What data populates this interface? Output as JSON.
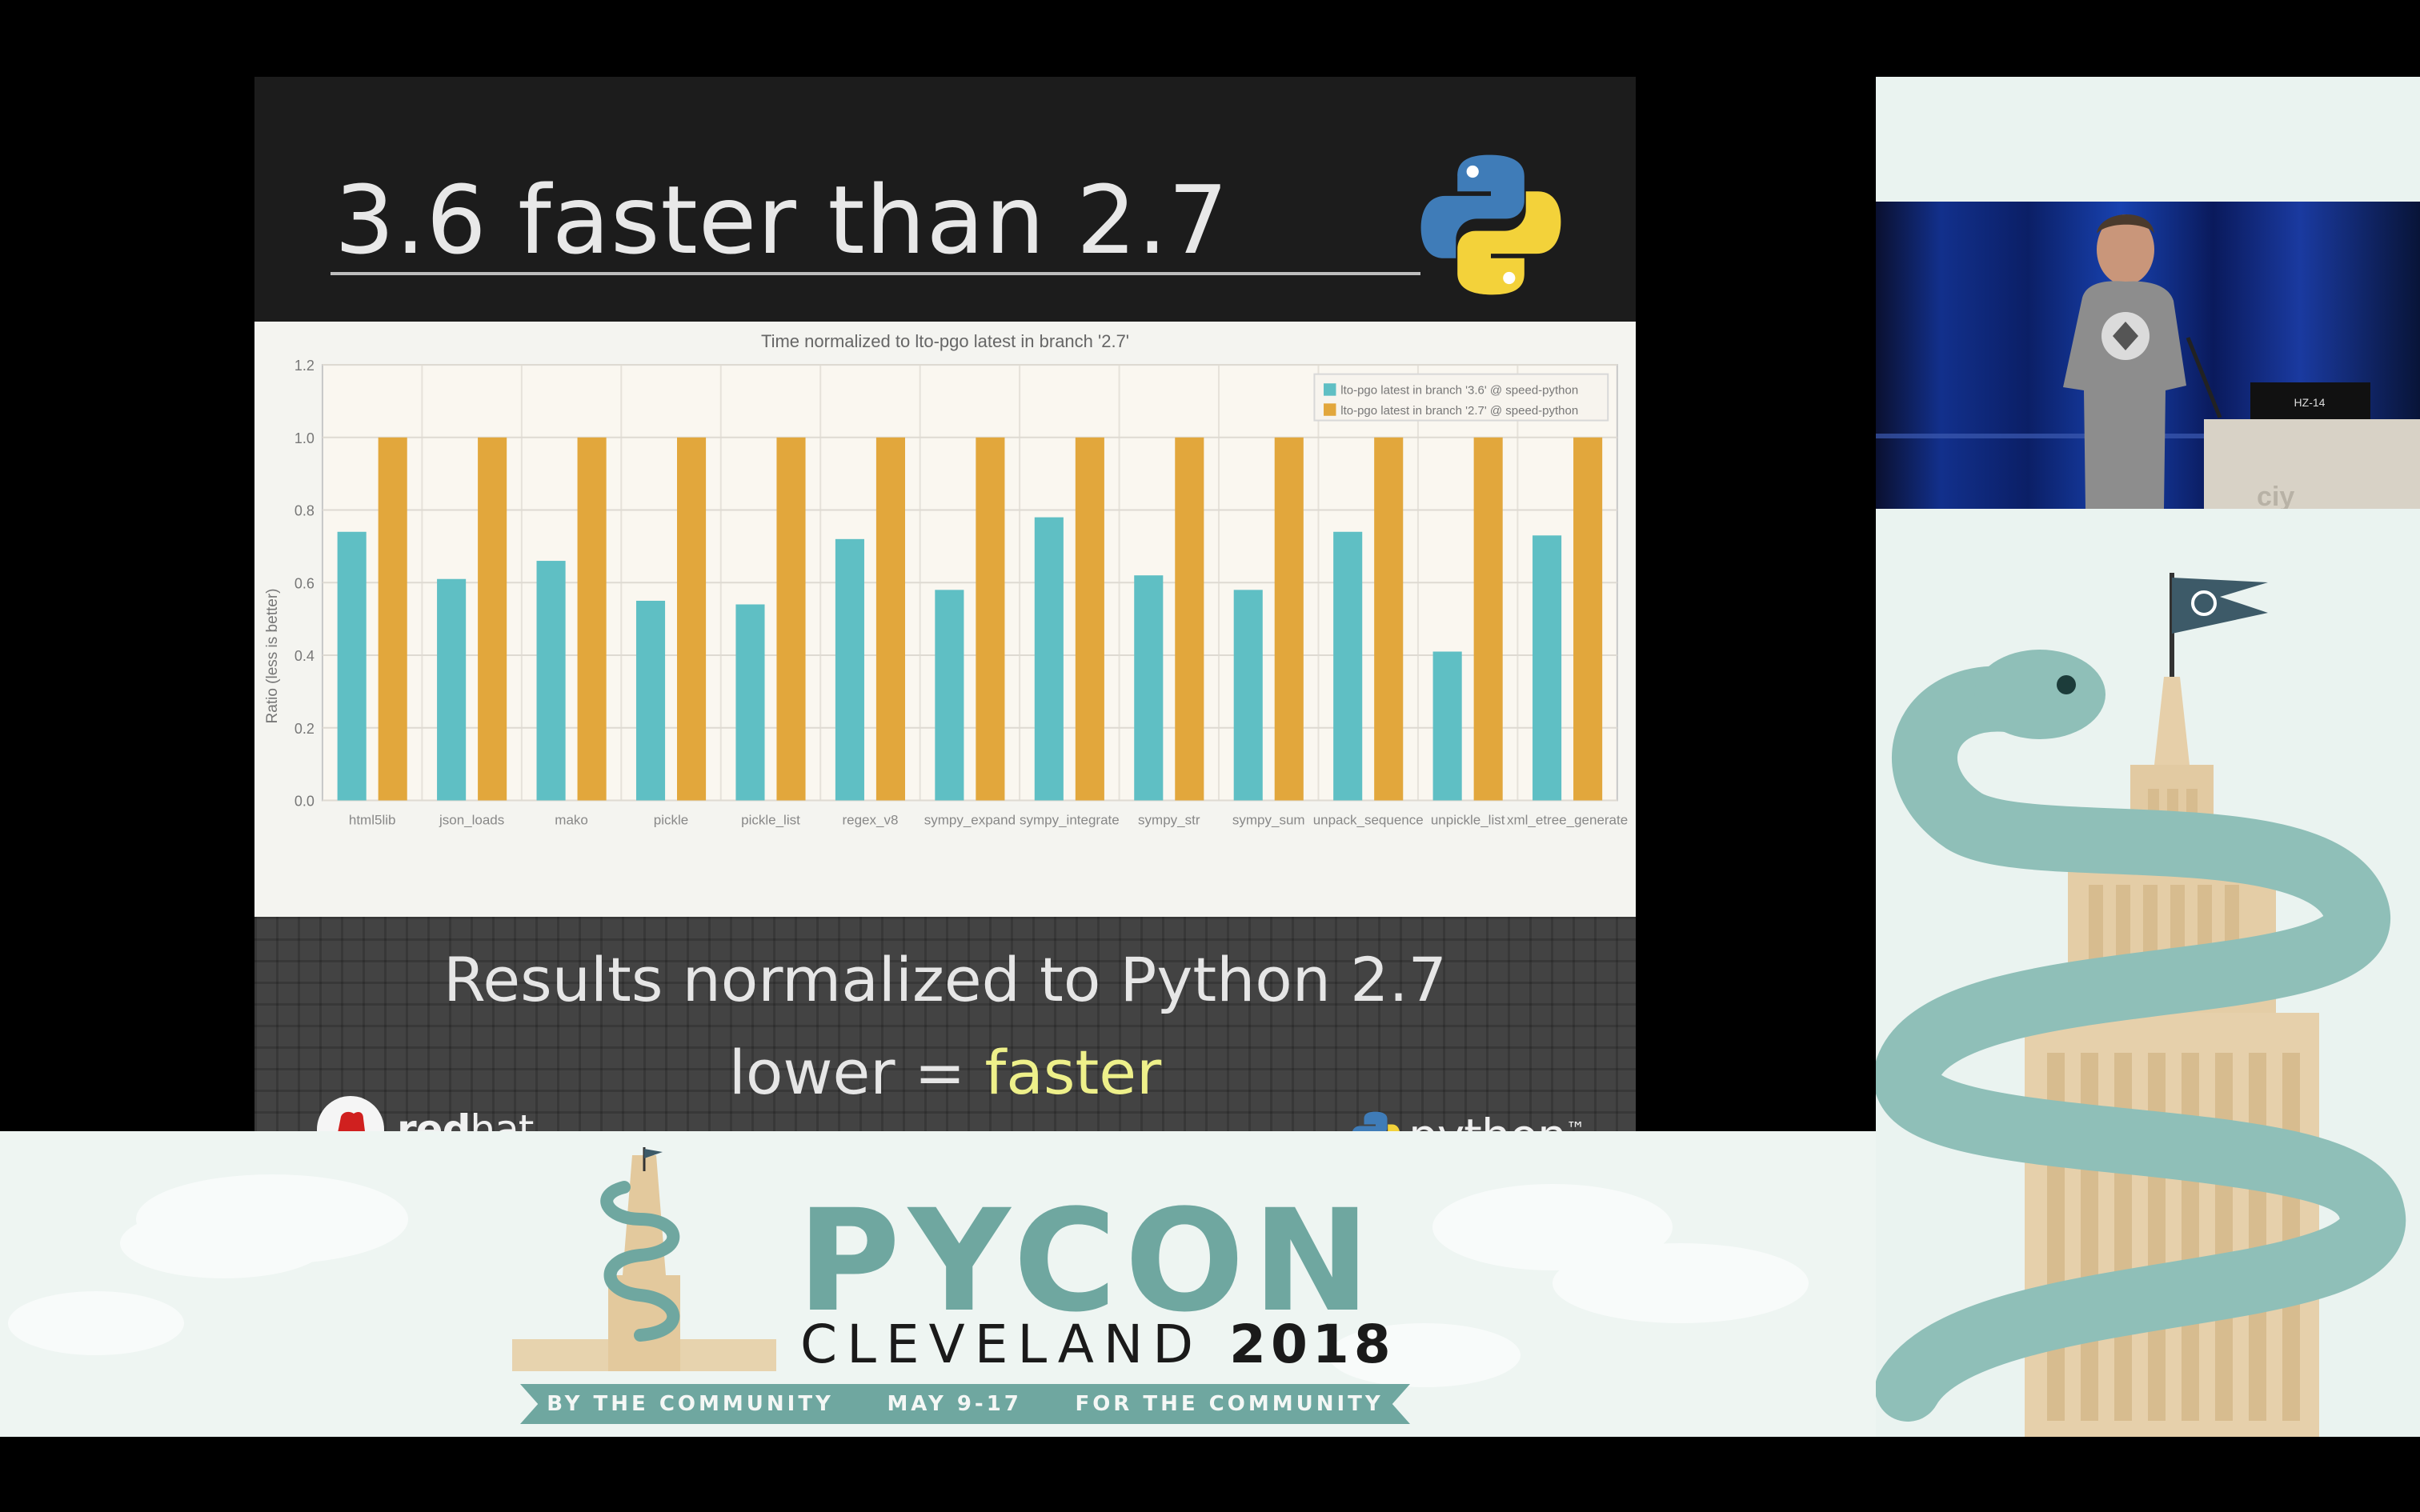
{
  "slide": {
    "title": "3.6 faster than 2.7",
    "results_text": "Results normalized to Python 2.7",
    "lower_text": "lower = ",
    "faster_text": "faster",
    "redhat_bold": "red",
    "redhat_light": "hat",
    "python_brand": "python",
    "python_tm": "™"
  },
  "chart_data": {
    "type": "bar",
    "title": "Time normalized to lto-pgo latest in branch '2.7'",
    "ylabel": "Ratio  (less is better)",
    "xlabel": "",
    "ylim": [
      0,
      1.2
    ],
    "yticks": [
      "0.0",
      "0.2",
      "0.4",
      "0.6",
      "0.8",
      "1.0",
      "1.2"
    ],
    "grid": true,
    "legend_position": "top-right",
    "categories": [
      "html5lib",
      "json_loads",
      "mako",
      "pickle",
      "pickle_list",
      "regex_v8",
      "sympy_expand",
      "sympy_integrate",
      "sympy_str",
      "sympy_sum",
      "unpack_sequence",
      "unpickle_list",
      "xml_etree_generate"
    ],
    "series": [
      {
        "name": "lto-pgo latest in branch '3.6' @ speed-python",
        "color": "#5fbfc4",
        "values": [
          0.74,
          0.61,
          0.66,
          0.55,
          0.54,
          0.72,
          0.58,
          0.78,
          0.62,
          0.58,
          0.74,
          0.41,
          0.73
        ]
      },
      {
        "name": "lto-pgo latest in branch '2.7' @ speed-python",
        "color": "#e2a73c",
        "values": [
          1.0,
          1.0,
          1.0,
          1.0,
          1.0,
          1.0,
          1.0,
          1.0,
          1.0,
          1.0,
          1.0,
          1.0,
          1.0
        ]
      }
    ]
  },
  "video": {
    "label": "HZ-14"
  },
  "banner": {
    "pycon": "PYCON",
    "city": "CLEVELAND",
    "year": "2018",
    "ribbon_left": "BY THE COMMUNITY",
    "ribbon_mid": "MAY 9-17",
    "ribbon_right": "FOR THE COMMUNITY"
  },
  "colors": {
    "teal": "#6fa7a0",
    "series_36": "#5fbfc4",
    "series_27": "#e2a73c",
    "faster_highlight": "#eef08a"
  }
}
